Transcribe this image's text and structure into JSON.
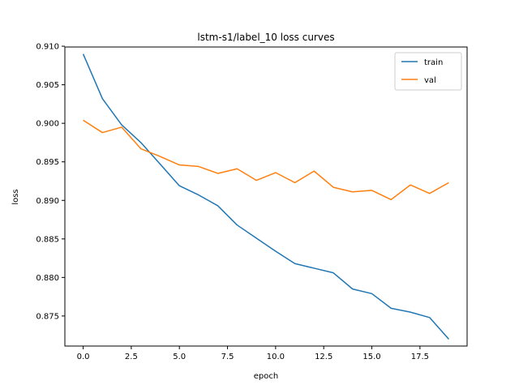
{
  "chart_data": {
    "type": "line",
    "title": "lstm-s1/label_10 loss curves",
    "xlabel": "epoch",
    "ylabel": "loss",
    "xlim": [
      -0.95,
      19.95
    ],
    "ylim": [
      0.8711,
      0.9099
    ],
    "xticks": [
      0.0,
      2.5,
      5.0,
      7.5,
      10.0,
      12.5,
      15.0,
      17.5
    ],
    "xtick_labels": [
      "0.0",
      "2.5",
      "5.0",
      "7.5",
      "10.0",
      "12.5",
      "15.0",
      "17.5"
    ],
    "yticks": [
      0.875,
      0.88,
      0.885,
      0.89,
      0.895,
      0.9,
      0.905,
      0.91
    ],
    "ytick_labels": [
      "0.875",
      "0.880",
      "0.885",
      "0.890",
      "0.895",
      "0.900",
      "0.905",
      "0.910"
    ],
    "grid": false,
    "legend_position": "top-right",
    "x": [
      0,
      1,
      2,
      3,
      4,
      5,
      6,
      7,
      8,
      9,
      10,
      11,
      12,
      13,
      14,
      15,
      16,
      17,
      18,
      19
    ],
    "series": [
      {
        "name": "train",
        "color": "#1f77b4",
        "values": [
          0.909,
          0.9032,
          0.8998,
          0.8975,
          0.8947,
          0.8919,
          0.8907,
          0.8893,
          0.8868,
          0.8851,
          0.8834,
          0.8818,
          0.8812,
          0.8806,
          0.8785,
          0.8779,
          0.876,
          0.8755,
          0.8748,
          0.872
        ]
      },
      {
        "name": "val",
        "color": "#ff7f0e",
        "values": [
          0.9004,
          0.8988,
          0.8995,
          0.8967,
          0.8957,
          0.8946,
          0.8944,
          0.8935,
          0.8941,
          0.8926,
          0.8936,
          0.8923,
          0.8938,
          0.8917,
          0.8911,
          0.8913,
          0.8901,
          0.892,
          0.8909,
          0.8923
        ]
      }
    ]
  }
}
